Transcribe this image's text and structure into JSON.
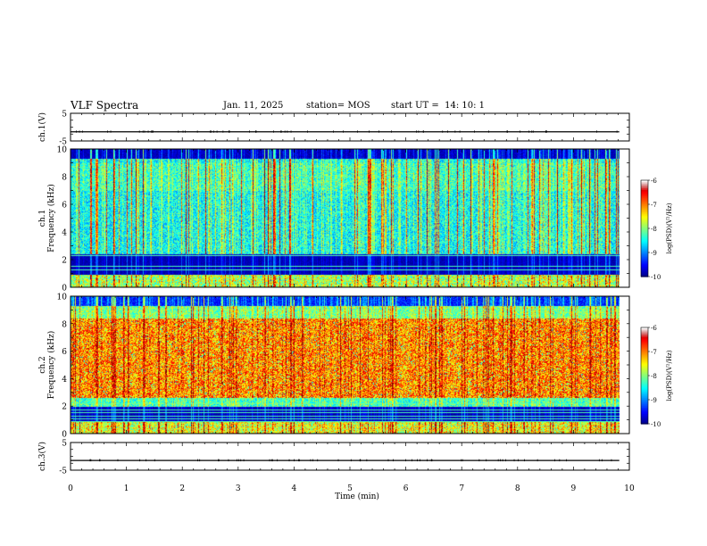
{
  "header": {
    "title": "VLF Spectra",
    "date": "Jan. 11, 2025",
    "station": "station= MOS",
    "start": "start UT =  14: 10: 1"
  },
  "chart_data": [
    {
      "type": "line",
      "panel": "ch1-voltage",
      "ylabel": "ch.1(V)",
      "ylim": [
        -5,
        5
      ],
      "yticks": [
        "5",
        "-5"
      ],
      "xlim": [
        0,
        10
      ],
      "series": [
        {
          "x": [
            0,
            9.82
          ],
          "y": [
            -1.7,
            -1.7
          ]
        }
      ]
    },
    {
      "type": "heatmap",
      "panel": "ch1-spectrogram",
      "ylabel": "ch.1\nFrequency (kHz)",
      "ylim": [
        0,
        10
      ],
      "yticks": [
        "0",
        "2",
        "4",
        "6",
        "8",
        "10"
      ],
      "xlim": [
        0,
        10
      ],
      "data_xmax": 9.82,
      "colorbar": {
        "label": "log(PSD)(V²/Hz)",
        "range": [
          -10,
          -6
        ],
        "ticks": [
          "-6",
          "-7",
          "-8",
          "-9",
          "-10"
        ]
      },
      "description": "broadband intermittent noise 2.5-9.5 kHz mostly log PSD -9 to -8 with frequent vertical impulsive streaks; strong line emissions near 0.3-1 kHz"
    },
    {
      "type": "heatmap",
      "panel": "ch2-spectrogram",
      "ylabel": "ch.2\nFrequency (kHz)",
      "ylim": [
        0,
        10
      ],
      "yticks": [
        "0",
        "2",
        "4",
        "6",
        "8",
        "10"
      ],
      "xlim": [
        0,
        10
      ],
      "data_xmax": 9.82,
      "colorbar": {
        "label": "log(PSD)(V²/Hz)",
        "range": [
          -10,
          -6
        ],
        "ticks": [
          "-6",
          "-7",
          "-8",
          "-9",
          "-10"
        ]
      },
      "description": "intense broadband emission 3-8.5 kHz at log PSD around -7, fading toward 10 kHz; low band below 2 kHz with horizontal lines"
    },
    {
      "type": "line",
      "panel": "ch3-voltage",
      "ylabel": "ch.3(V)",
      "ylim": [
        -5,
        5
      ],
      "yticks": [
        "5",
        "-5"
      ],
      "xlabel": "Time (min)",
      "xlim": [
        0,
        10
      ],
      "xticks": [
        "0",
        "1",
        "2",
        "3",
        "4",
        "5",
        "6",
        "7",
        "8",
        "9",
        "10"
      ],
      "series": [
        {
          "x": [
            0,
            9.82
          ],
          "y": [
            -1.5,
            -1.5
          ]
        }
      ]
    }
  ]
}
